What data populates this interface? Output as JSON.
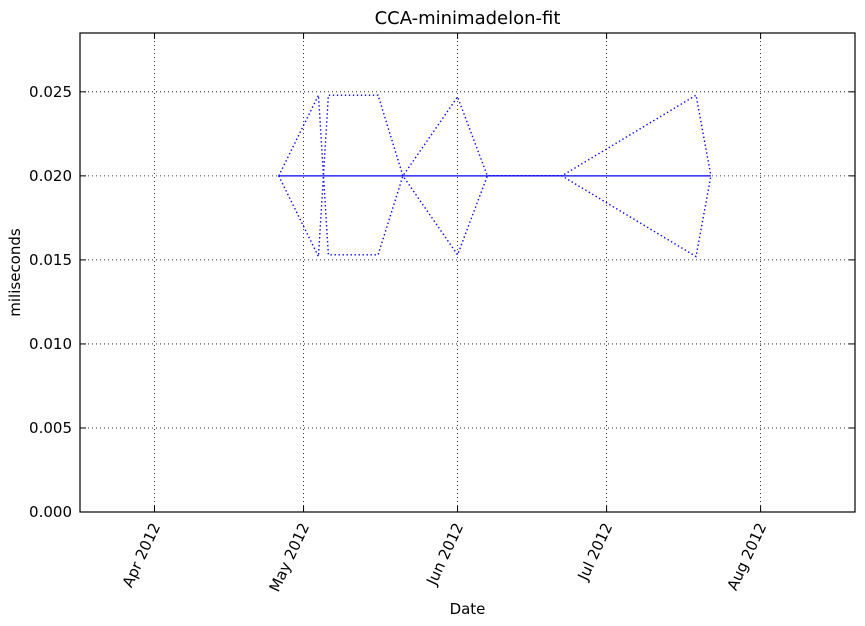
{
  "chart_data": {
    "type": "line",
    "title": "CCA-minimadelon-fit",
    "xlabel": "Date",
    "ylabel": "miliseconds",
    "xlim": [
      "2012-03-17",
      "2012-08-20"
    ],
    "ylim": [
      0.0,
      0.0285
    ],
    "grid": true,
    "x_ticks": [
      {
        "date": "2012-04-01",
        "label": "Apr 2012"
      },
      {
        "date": "2012-05-01",
        "label": "May 2012"
      },
      {
        "date": "2012-06-01",
        "label": "Jun 2012"
      },
      {
        "date": "2012-07-01",
        "label": "Jul 2012"
      },
      {
        "date": "2012-08-01",
        "label": "Aug 2012"
      }
    ],
    "y_ticks": [
      {
        "value": 0.0,
        "label": "0.000"
      },
      {
        "value": 0.005,
        "label": "0.005"
      },
      {
        "value": 0.01,
        "label": "0.010"
      },
      {
        "value": 0.015,
        "label": "0.015"
      },
      {
        "value": 0.02,
        "label": "0.020"
      },
      {
        "value": 0.025,
        "label": "0.025"
      }
    ],
    "series": [
      {
        "style": "solid",
        "color": "#0000ff",
        "x": [
          "2012-04-26",
          "2012-05-04",
          "2012-05-06",
          "2012-05-16",
          "2012-05-21",
          "2012-06-01",
          "2012-06-07",
          "2012-06-22",
          "2012-07-19",
          "2012-07-22"
        ],
        "y": [
          0.02,
          0.02,
          0.02,
          0.02,
          0.02,
          0.02,
          0.02,
          0.02,
          0.02,
          0.02
        ]
      },
      {
        "style": "dotted",
        "color": "#0000ff",
        "x": [
          "2012-04-26",
          "2012-05-04",
          "2012-05-06",
          "2012-05-16",
          "2012-05-21",
          "2012-06-01",
          "2012-06-07",
          "2012-06-22",
          "2012-07-19",
          "2012-07-22"
        ],
        "y": [
          0.02,
          0.0248,
          0.0153,
          0.0153,
          0.02,
          0.0247,
          0.02,
          0.02,
          0.0248,
          0.02
        ]
      },
      {
        "style": "dotted",
        "color": "#0000ff",
        "x": [
          "2012-04-26",
          "2012-05-04",
          "2012-05-06",
          "2012-05-16",
          "2012-05-21",
          "2012-06-01",
          "2012-06-07",
          "2012-06-22",
          "2012-07-19",
          "2012-07-22"
        ],
        "y": [
          0.02,
          0.0152,
          0.0248,
          0.0248,
          0.02,
          0.0153,
          0.02,
          0.02,
          0.0152,
          0.02
        ]
      }
    ]
  }
}
